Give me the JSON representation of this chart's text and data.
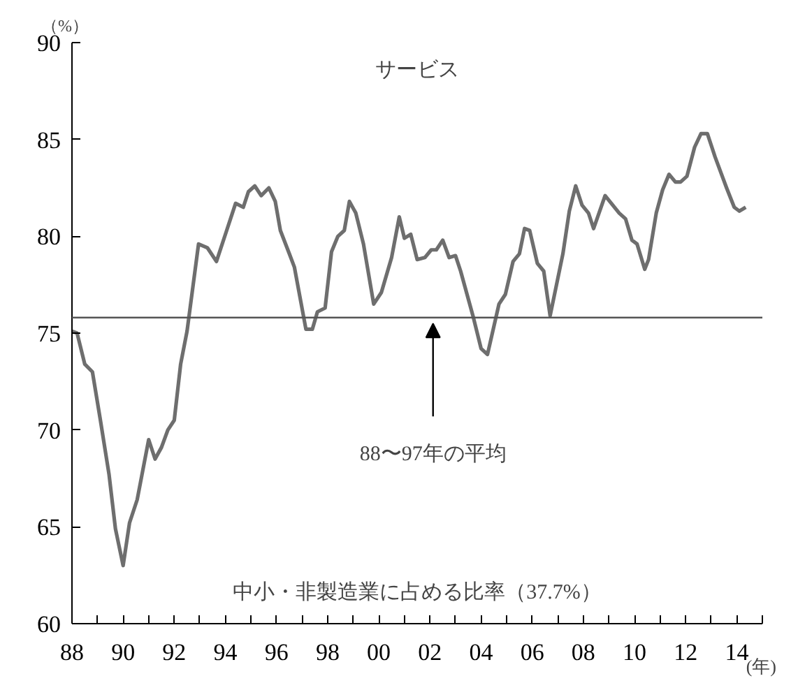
{
  "chart_data": {
    "type": "line",
    "title": "サービス",
    "ylabel": "（%）",
    "xlabel": "(年)",
    "annotations": [
      "中小・非製造業に占める比率（37.7%）"
    ],
    "x": [
      1988.0,
      1988.2,
      1988.5,
      1988.8,
      1989.1,
      1989.45,
      1989.7,
      1990.0,
      1990.25,
      1990.55,
      1991.0,
      1991.25,
      1991.5,
      1991.75,
      1992.0,
      1992.25,
      1992.5,
      1992.95,
      1993.3,
      1993.65,
      1994.05,
      1994.4,
      1994.7,
      1994.9,
      1995.15,
      1995.4,
      1995.7,
      1995.95,
      1996.15,
      1996.5,
      1996.7,
      1997.15,
      1997.4,
      1997.6,
      1997.9,
      1998.15,
      1998.4,
      1998.65,
      1998.85,
      1999.1,
      1999.4,
      1999.8,
      2000.1,
      2000.5,
      2000.8,
      2001.0,
      2001.25,
      2001.5,
      2001.8,
      2002.05,
      2002.25,
      2002.5,
      2002.75,
      2003.0,
      2003.2,
      2003.7,
      2004.0,
      2004.25,
      2004.7,
      2004.95,
      2005.25,
      2005.5,
      2005.7,
      2005.9,
      2006.2,
      2006.45,
      2006.7,
      2007.2,
      2007.45,
      2007.7,
      2007.95,
      2008.2,
      2008.4,
      2008.85,
      2009.4,
      2009.65,
      2009.9,
      2010.1,
      2010.4,
      2010.55,
      2010.85,
      2011.1,
      2011.35,
      2011.6,
      2011.8,
      2012.05,
      2012.35,
      2012.6,
      2012.85,
      2013.15,
      2013.6,
      2013.9,
      2014.1,
      2014.35
    ],
    "series": [
      {
        "color": "#6e6e6e",
        "values": [
          75.1,
          75.0,
          73.4,
          73.0,
          70.6,
          67.7,
          64.9,
          63.0,
          65.2,
          66.4,
          69.5,
          68.5,
          69.1,
          70.0,
          70.5,
          73.4,
          75.1,
          79.6,
          79.4,
          78.7,
          80.3,
          81.7,
          81.5,
          82.3,
          82.6,
          82.1,
          82.5,
          81.8,
          80.3,
          79.1,
          78.4,
          75.2,
          75.2,
          76.1,
          76.3,
          79.2,
          80.0,
          80.3,
          81.8,
          81.2,
          79.6,
          76.5,
          77.1,
          78.9,
          81.0,
          79.9,
          80.1,
          78.8,
          78.9,
          79.3,
          79.3,
          79.8,
          78.9,
          79.0,
          78.2,
          75.8,
          74.2,
          73.9,
          76.5,
          77.0,
          78.7,
          79.1,
          80.4,
          80.3,
          78.6,
          78.2,
          75.9,
          79.1,
          81.3,
          82.6,
          81.6,
          81.2,
          80.4,
          82.1,
          81.2,
          80.9,
          79.8,
          79.6,
          78.3,
          78.8,
          81.2,
          82.4,
          83.2,
          82.8,
          82.8,
          83.1,
          84.6,
          85.3,
          85.3,
          84.1,
          82.5,
          81.5,
          81.3,
          81.5
        ]
      }
    ],
    "ref_lines": [
      {
        "axis": "y",
        "value": 75.8,
        "label": "88〜97年の平均",
        "color": "#555555"
      }
    ],
    "xlim": [
      1988,
      2015
    ],
    "ylim": [
      60,
      90
    ],
    "xticks": [
      {
        "value": 1988,
        "label": "88"
      },
      {
        "value": 1989,
        "label": null
      },
      {
        "value": 1990,
        "label": "90"
      },
      {
        "value": 1991,
        "label": null
      },
      {
        "value": 1992,
        "label": "92"
      },
      {
        "value": 1993,
        "label": null
      },
      {
        "value": 1994,
        "label": "94"
      },
      {
        "value": 1995,
        "label": null
      },
      {
        "value": 1996,
        "label": "96"
      },
      {
        "value": 1997,
        "label": null
      },
      {
        "value": 1998,
        "label": "98"
      },
      {
        "value": 1999,
        "label": null
      },
      {
        "value": 2000,
        "label": "00"
      },
      {
        "value": 2001,
        "label": null
      },
      {
        "value": 2002,
        "label": "02"
      },
      {
        "value": 2003,
        "label": null
      },
      {
        "value": 2004,
        "label": "04"
      },
      {
        "value": 2005,
        "label": null
      },
      {
        "value": 2006,
        "label": "06"
      },
      {
        "value": 2007,
        "label": null
      },
      {
        "value": 2008,
        "label": "08"
      },
      {
        "value": 2009,
        "label": null
      },
      {
        "value": 2010,
        "label": "10"
      },
      {
        "value": 2011,
        "label": null
      },
      {
        "value": 2012,
        "label": "12"
      },
      {
        "value": 2013,
        "label": null
      },
      {
        "value": 2014,
        "label": "14"
      },
      {
        "value": 2015,
        "label": null
      }
    ],
    "yticks": [
      60,
      65,
      70,
      75,
      80,
      85,
      90
    ],
    "grid": false,
    "marker": "none",
    "line_style": "solid"
  }
}
